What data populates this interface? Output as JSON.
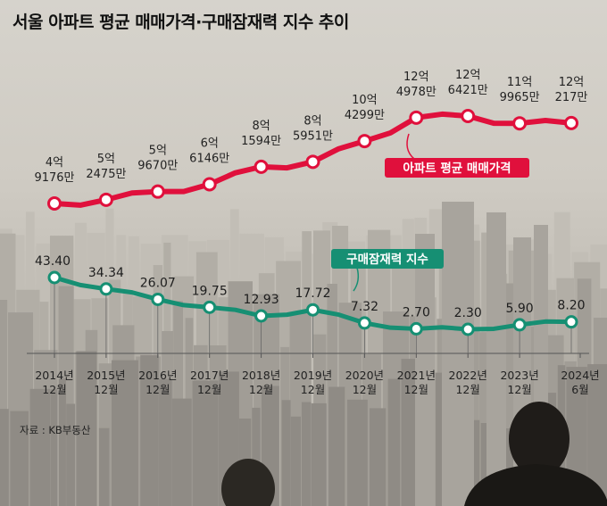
{
  "title": "서울 아파트 평균 매매가격·구매잠재력 지수 추이",
  "source": "자료 : KB부동산",
  "colors": {
    "price": "#e0103c",
    "index": "#168f73"
  },
  "chart_data": {
    "type": "line",
    "x": [
      [
        "2014년",
        "12월"
      ],
      [
        "2015년",
        "12월"
      ],
      [
        "2016년",
        "12월"
      ],
      [
        "2017년",
        "12월"
      ],
      [
        "2018년",
        "12월"
      ],
      [
        "2019년",
        "12월"
      ],
      [
        "2020년",
        "12월"
      ],
      [
        "2021년",
        "12월"
      ],
      [
        "2022년",
        "12월"
      ],
      [
        "2023년",
        "12월"
      ],
      [
        "2024년",
        "6월"
      ]
    ],
    "series": [
      {
        "name": "아파트 평균 매매가격",
        "values": [
          49176,
          52475,
          59670,
          66146,
          81594,
          85951,
          104299,
          124978,
          126421,
          119965,
          120217
        ],
        "labels": [
          [
            "4억",
            "9176만"
          ],
          [
            "5억",
            "2475만"
          ],
          [
            "5억",
            "9670만"
          ],
          [
            "6억",
            "6146만"
          ],
          [
            "8억",
            "1594만"
          ],
          [
            "8억",
            "5951만"
          ],
          [
            "10억",
            "4299만"
          ],
          [
            "12억",
            "4978만"
          ],
          [
            "12억",
            "6421만"
          ],
          [
            "11억",
            "9965만"
          ],
          [
            "12억",
            "217만"
          ]
        ]
      },
      {
        "name": "구매잠재력 지수",
        "values": [
          43.4,
          34.34,
          26.07,
          19.75,
          12.93,
          17.72,
          7.32,
          2.7,
          2.3,
          5.9,
          8.2
        ],
        "labels": [
          "43.40",
          "34.34",
          "26.07",
          "19.75",
          "12.93",
          "17.72",
          "7.32",
          "2.70",
          "2.30",
          "5.90",
          "8.20"
        ]
      }
    ]
  }
}
